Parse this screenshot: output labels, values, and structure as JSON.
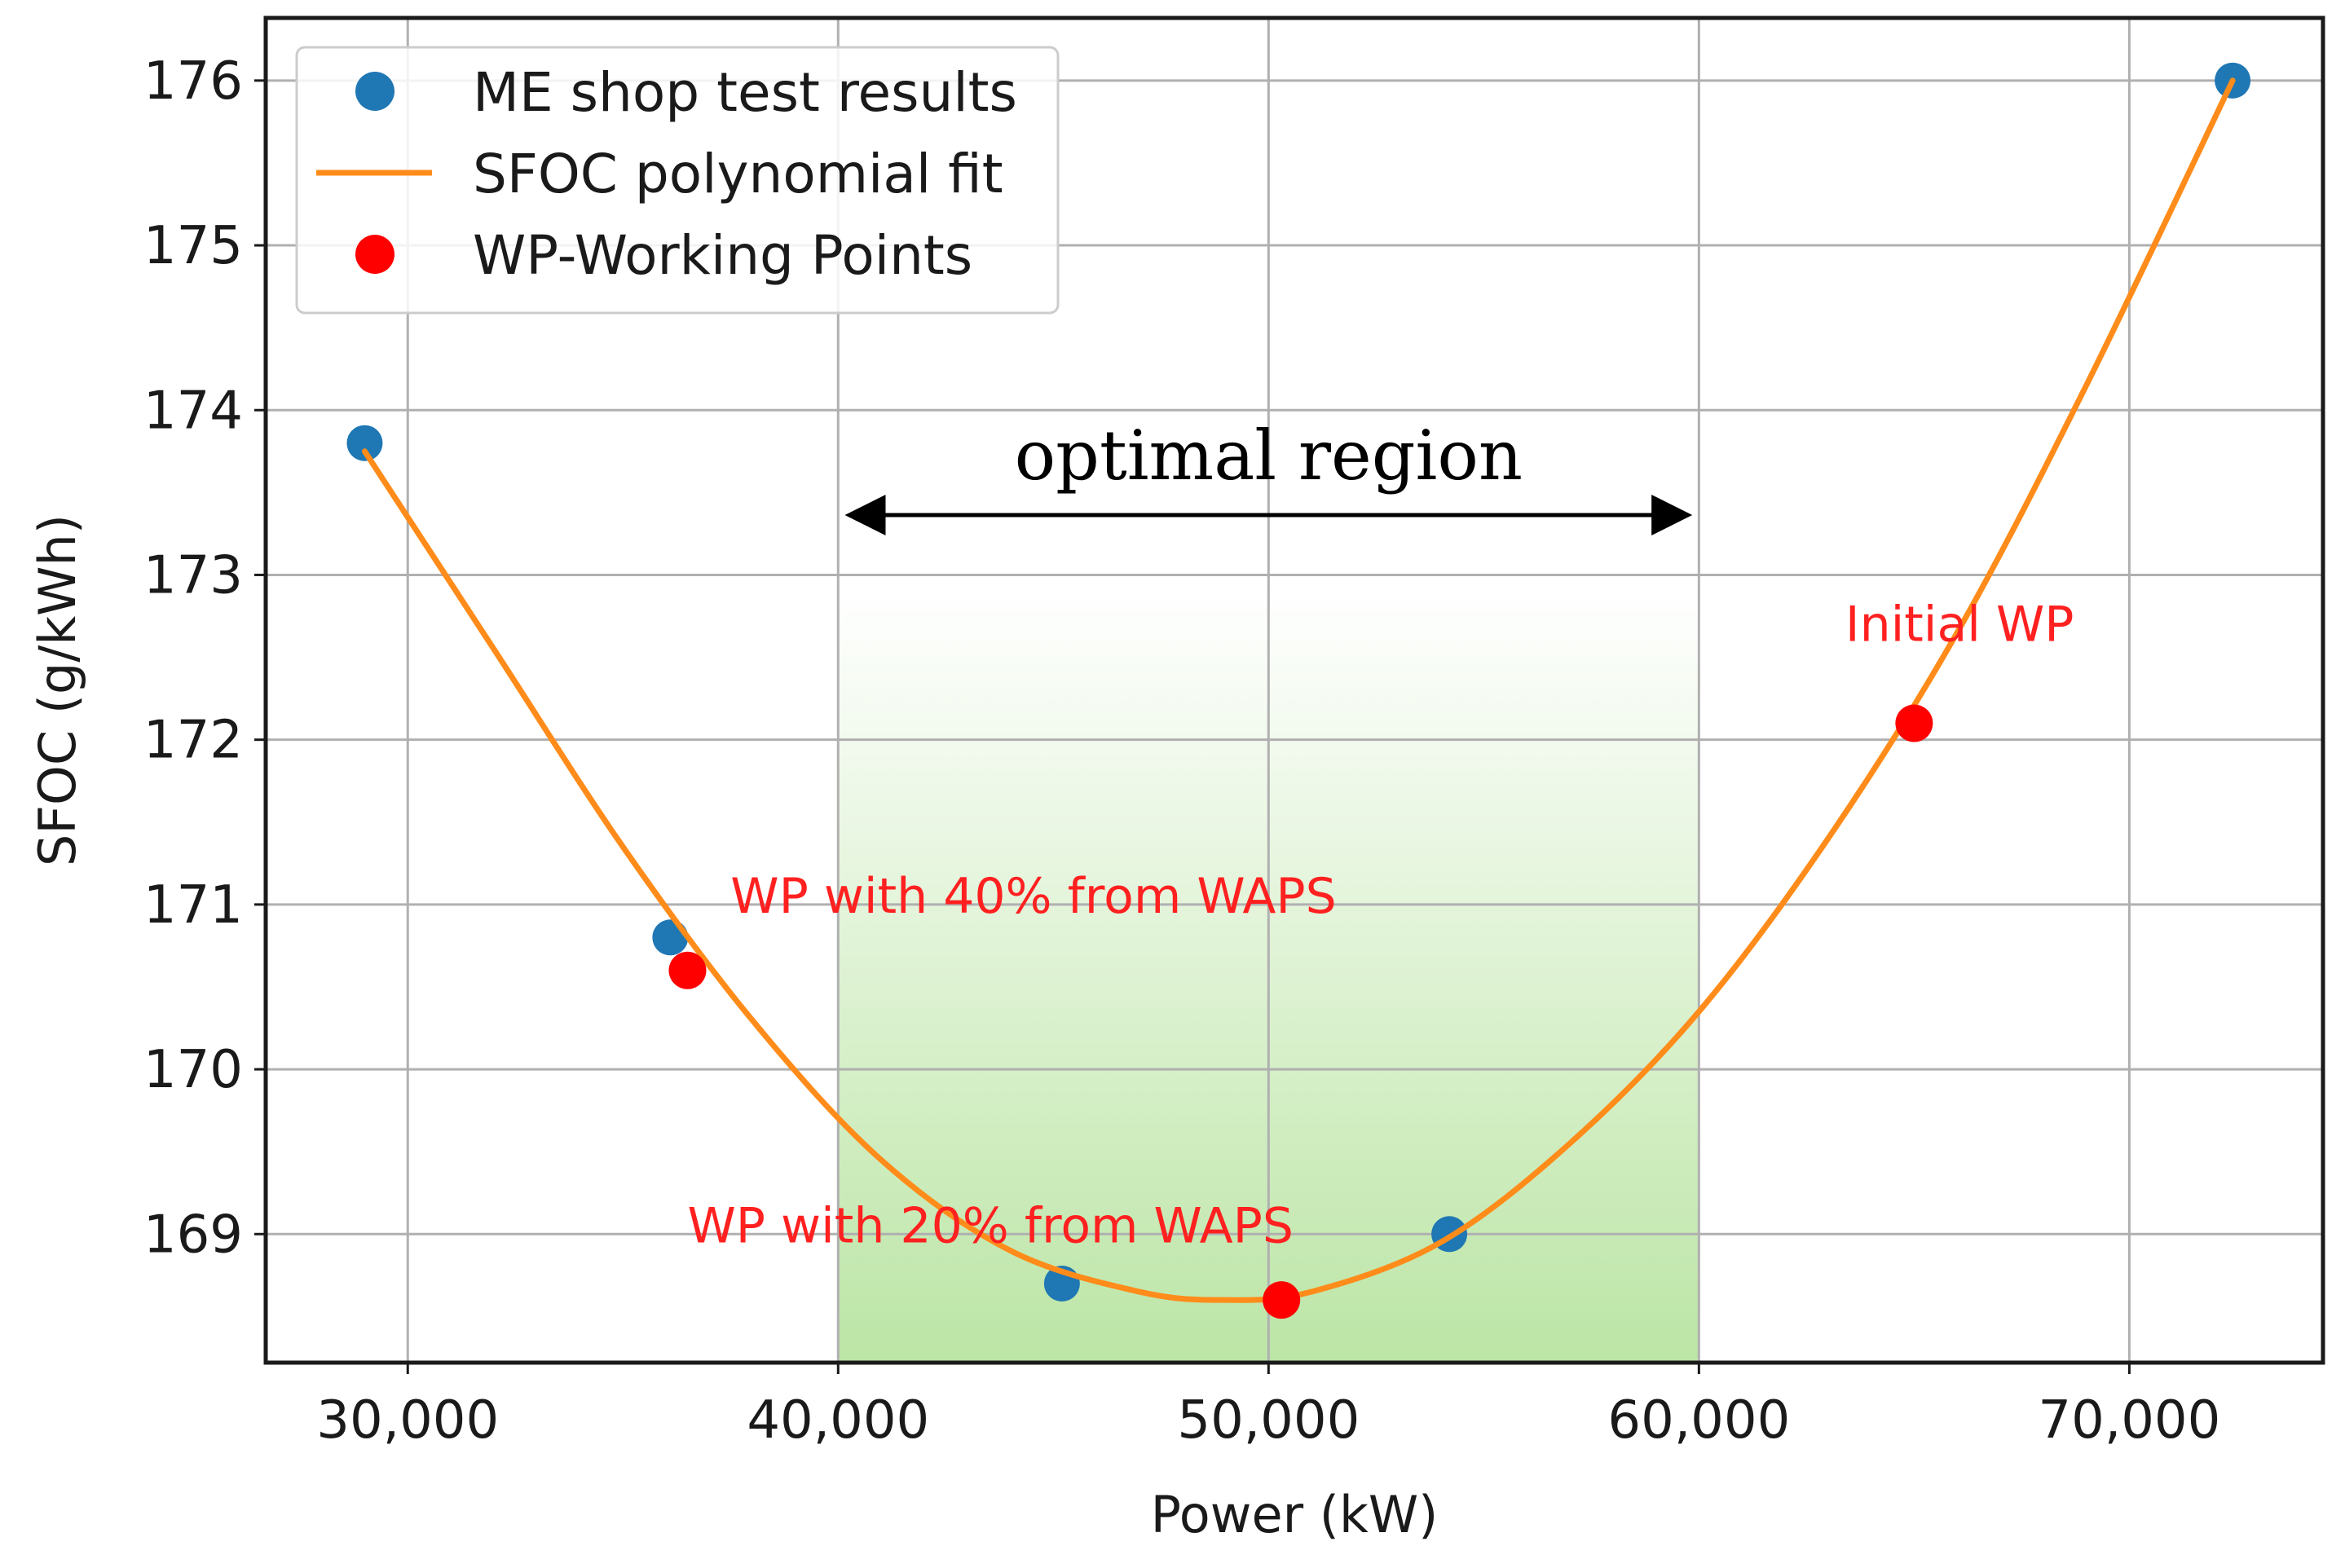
{
  "chart_data": {
    "type": "scatter",
    "xlabel": "Power (kW)",
    "ylabel": "SFOC (g/kWh)",
    "xlim": [
      26700,
      74500
    ],
    "ylim": [
      168.22,
      176.38
    ],
    "grid": true,
    "x_ticks": [
      30000,
      40000,
      50000,
      60000,
      70000
    ],
    "x_tick_labels": [
      "30,000",
      "40,000",
      "50,000",
      "60,000",
      "70,000"
    ],
    "y_ticks": [
      169,
      170,
      171,
      172,
      173,
      174,
      175,
      176
    ],
    "y_tick_labels": [
      "169",
      "170",
      "171",
      "172",
      "173",
      "174",
      "175",
      "176"
    ],
    "legend_position": "top-left",
    "legend": [
      {
        "label": "ME shop test results",
        "marker": "dot",
        "color": "#1f77b4"
      },
      {
        "label": "SFOC polynomial fit",
        "marker": "line",
        "color": "#ff8c1a"
      },
      {
        "label": "WP-Working Points",
        "marker": "dot",
        "color": "#ff0000"
      }
    ],
    "series": [
      {
        "name": "ME shop test results",
        "type": "scatter",
        "color": "#1f77b4",
        "x": [
          29000,
          36100,
          45200,
          54200,
          72400
        ],
        "y": [
          173.8,
          170.8,
          168.7,
          169.0,
          176.0
        ]
      },
      {
        "name": "SFOC polynomial fit",
        "type": "line",
        "color": "#ff8c1a",
        "x": [
          29000,
          32000,
          35000,
          38000,
          41000,
          44000,
          47000,
          49000,
          51000,
          54000,
          57000,
          60000,
          63000,
          66000,
          69000,
          72400
        ],
        "y": [
          173.75,
          172.55,
          171.35,
          170.3,
          169.45,
          168.9,
          168.65,
          168.6,
          168.65,
          168.95,
          169.55,
          170.35,
          171.4,
          172.65,
          174.15,
          176.0
        ]
      },
      {
        "name": "WP-Working Points",
        "type": "scatter",
        "color": "#ff0000",
        "x": [
          36500,
          50300,
          65000
        ],
        "y": [
          170.6,
          168.6,
          172.1
        ]
      }
    ],
    "shaded_region": {
      "x_range": [
        40000,
        60000
      ],
      "color": "#8fd46a",
      "label": "optimal region"
    },
    "annotations": [
      {
        "text": "Initial WP",
        "x": 63400,
        "y": 172.6,
        "color": "#ff2020"
      },
      {
        "text": "WP with 40% from WAPS",
        "x": 37500,
        "y": 170.95,
        "color": "#ff2020"
      },
      {
        "text": "WP with 20% from WAPS",
        "x": 36500,
        "y": 168.95,
        "color": "#ff2020"
      }
    ]
  }
}
